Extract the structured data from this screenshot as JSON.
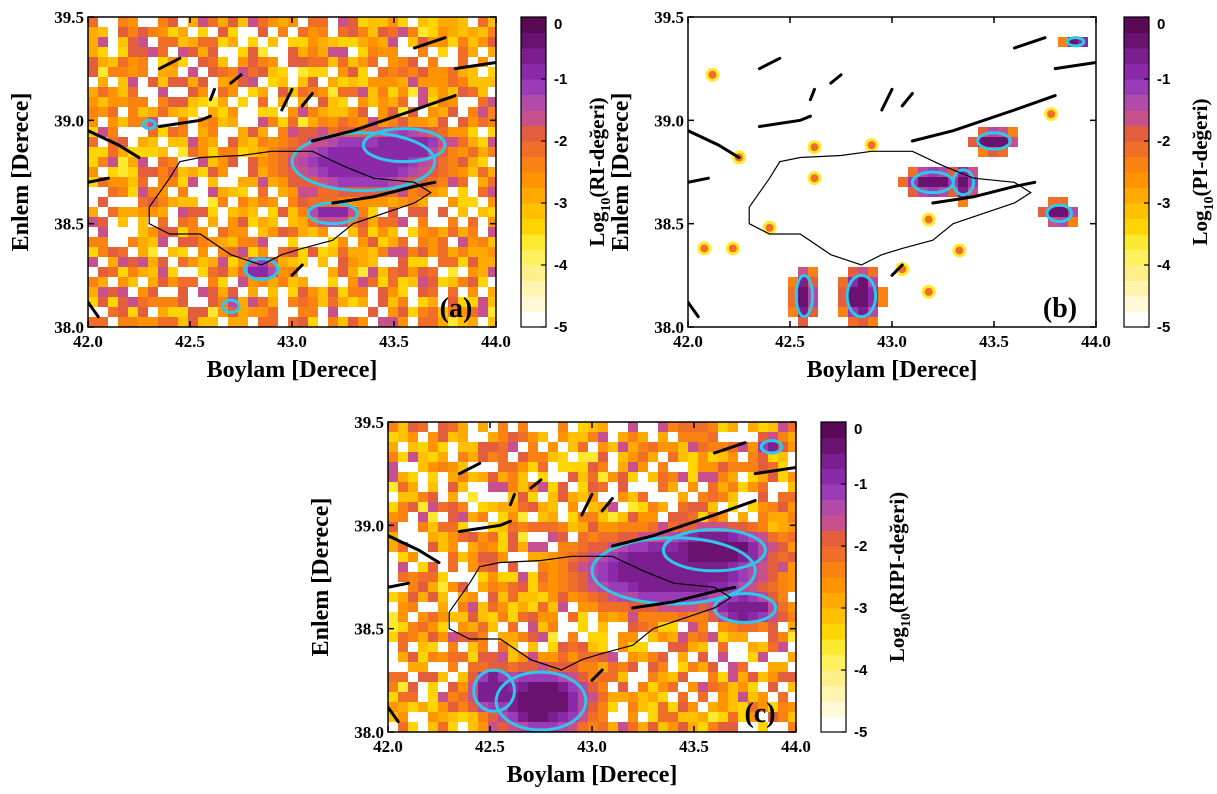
{
  "colors": {
    "scale": [
      "#ffffff",
      "#fff9d8",
      "#fff4b0",
      "#ffef8a",
      "#fff060",
      "#ffe930",
      "#ffd400",
      "#ffc000",
      "#ffaa00",
      "#ff9400",
      "#fa8212",
      "#f06e28",
      "#e25e3c",
      "#c8508c",
      "#b24aa8",
      "#9a3cb8",
      "#8a2aa8",
      "#7a1e90",
      "#6a1270",
      "#5a0a55"
    ],
    "contour": "#30c8e8",
    "fault": "#000000",
    "border": "#000000"
  },
  "chart_data": [
    {
      "type": "heatmap",
      "panel_label": "(a)",
      "xlabel": "Boylam [Derece]",
      "ylabel": "Enlem [Derece]",
      "colorbar_label_pre": "Log",
      "colorbar_label_sub": "10",
      "colorbar_label_post": "(RI-değeri)",
      "xlim": [
        42.0,
        44.0
      ],
      "ylim": [
        38.0,
        39.5
      ],
      "clim": [
        -5,
        0
      ],
      "x_ticks": [
        "42.0",
        "42.5",
        "43.0",
        "43.5",
        "44.0"
      ],
      "y_ticks": [
        "38.0",
        "38.5",
        "39.0",
        "39.5"
      ],
      "colorbar_ticks": [
        "0",
        "-1",
        "-2",
        "-3",
        "-4",
        "-5"
      ],
      "hotspots": [
        {
          "lon": 43.35,
          "lat": 38.8,
          "log_value": -0.9,
          "rx": 0.35,
          "ry": 0.14
        },
        {
          "lon": 43.55,
          "lat": 38.88,
          "log_value": -0.8,
          "rx": 0.2,
          "ry": 0.08
        },
        {
          "lon": 43.2,
          "lat": 38.55,
          "log_value": -1.0,
          "rx": 0.12,
          "ry": 0.05
        },
        {
          "lon": 42.85,
          "lat": 38.28,
          "log_value": -1.0,
          "rx": 0.08,
          "ry": 0.05
        },
        {
          "lon": 42.3,
          "lat": 38.98,
          "log_value": -1.0,
          "rx": 0.03,
          "ry": 0.02
        },
        {
          "lon": 42.7,
          "lat": 38.1,
          "log_value": -1.0,
          "rx": 0.04,
          "ry": 0.03
        }
      ]
    },
    {
      "type": "heatmap",
      "panel_label": "(b)",
      "xlabel": "Boylam [Derece]",
      "ylabel": "Enlem [Derece]",
      "colorbar_label_pre": "Log",
      "colorbar_label_sub": "10",
      "colorbar_label_post": "(PI-değeri)",
      "xlim": [
        42.0,
        44.0
      ],
      "ylim": [
        38.0,
        39.5
      ],
      "clim": [
        -5,
        0
      ],
      "x_ticks": [
        "42.0",
        "42.5",
        "43.0",
        "43.5",
        "44.0"
      ],
      "y_ticks": [
        "38.0",
        "38.5",
        "39.0",
        "39.5"
      ],
      "colorbar_ticks": [
        "0",
        "-1",
        "-2",
        "-3",
        "-4",
        "-5"
      ],
      "hotspots": [
        {
          "lon": 43.5,
          "lat": 38.9,
          "log_value": -0.3,
          "rx": 0.08,
          "ry": 0.04
        },
        {
          "lon": 43.2,
          "lat": 38.7,
          "log_value": -0.3,
          "rx": 0.1,
          "ry": 0.05
        },
        {
          "lon": 43.35,
          "lat": 38.7,
          "log_value": -0.3,
          "rx": 0.05,
          "ry": 0.06
        },
        {
          "lon": 43.82,
          "lat": 38.55,
          "log_value": -0.3,
          "rx": 0.06,
          "ry": 0.04
        },
        {
          "lon": 42.85,
          "lat": 38.15,
          "log_value": -0.3,
          "rx": 0.07,
          "ry": 0.1
        },
        {
          "lon": 42.57,
          "lat": 38.15,
          "log_value": -0.3,
          "rx": 0.04,
          "ry": 0.1
        },
        {
          "lon": 43.9,
          "lat": 39.38,
          "log_value": -0.3,
          "rx": 0.04,
          "ry": 0.02
        }
      ]
    },
    {
      "type": "heatmap",
      "panel_label": "(c)",
      "xlabel": "Boylam [Derece]",
      "ylabel": "Enlem [Derece]",
      "colorbar_label_pre": "Log",
      "colorbar_label_sub": "10",
      "colorbar_label_post": "(RIPI-değeri)",
      "xlim": [
        42.0,
        44.0
      ],
      "ylim": [
        38.0,
        39.5
      ],
      "clim": [
        -5,
        0
      ],
      "x_ticks": [
        "42.0",
        "42.5",
        "43.0",
        "43.5",
        "44.0"
      ],
      "y_ticks": [
        "38.0",
        "38.5",
        "39.0",
        "39.5"
      ],
      "colorbar_ticks": [
        "0",
        "-1",
        "-2",
        "-3",
        "-4",
        "-5"
      ],
      "hotspots": [
        {
          "lon": 43.4,
          "lat": 38.78,
          "log_value": -0.6,
          "rx": 0.4,
          "ry": 0.16
        },
        {
          "lon": 43.6,
          "lat": 38.88,
          "log_value": -0.5,
          "rx": 0.25,
          "ry": 0.1
        },
        {
          "lon": 43.75,
          "lat": 38.6,
          "log_value": -0.6,
          "rx": 0.15,
          "ry": 0.07
        },
        {
          "lon": 42.75,
          "lat": 38.15,
          "log_value": -0.5,
          "rx": 0.22,
          "ry": 0.14
        },
        {
          "lon": 42.52,
          "lat": 38.2,
          "log_value": -0.6,
          "rx": 0.1,
          "ry": 0.1
        },
        {
          "lon": 43.88,
          "lat": 39.38,
          "log_value": -0.6,
          "rx": 0.05,
          "ry": 0.03
        }
      ]
    }
  ]
}
